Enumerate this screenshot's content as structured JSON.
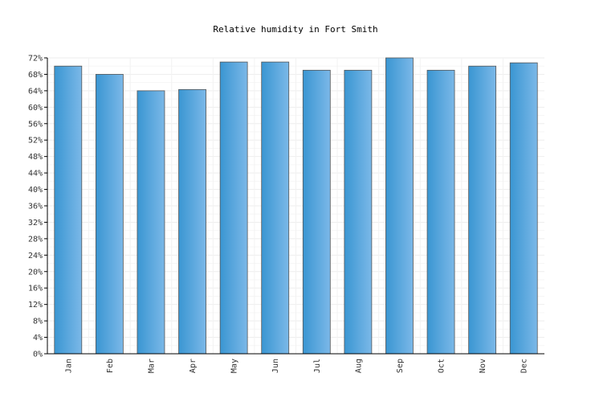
{
  "chart_data": {
    "type": "bar",
    "title": "Relative humidity in Fort Smith",
    "xlabel": "",
    "ylabel": "",
    "categories": [
      "Jan",
      "Feb",
      "Mar",
      "Apr",
      "May",
      "Jun",
      "Jul",
      "Aug",
      "Sep",
      "Oct",
      "Nov",
      "Dec"
    ],
    "values": [
      70,
      68,
      64,
      64.3,
      71,
      71,
      69,
      69,
      72,
      69,
      70,
      70.8
    ],
    "ylim": [
      0,
      72
    ],
    "y_ticks": [
      0,
      4,
      8,
      12,
      16,
      20,
      24,
      28,
      32,
      36,
      40,
      44,
      48,
      52,
      56,
      60,
      64,
      68,
      72
    ],
    "y_tick_suffix": "%",
    "grid": true,
    "legend": "none",
    "bar_color_dark": "#3a96d2",
    "bar_color_light": "#7bb8e8",
    "bar_stroke": "#555555"
  }
}
